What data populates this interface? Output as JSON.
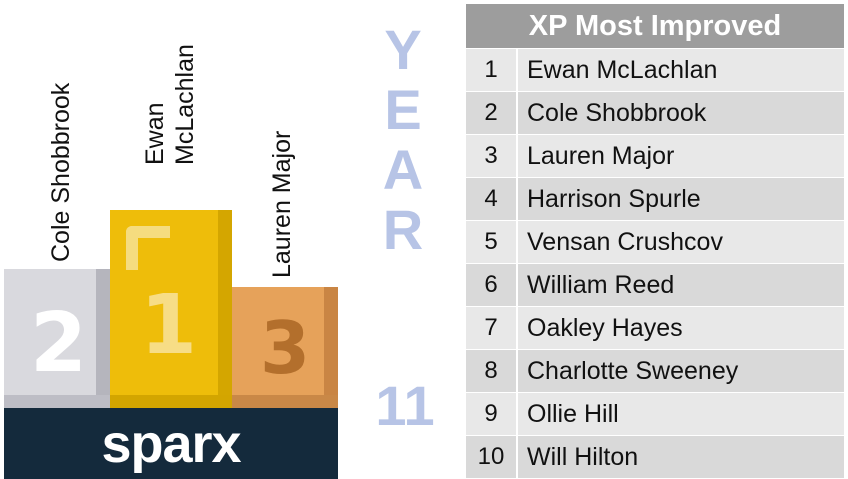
{
  "podium": {
    "first": {
      "name_line1": "Ewan",
      "name_line2": "McLachlan",
      "number": "1"
    },
    "second": {
      "name": "Cole Shobbrook",
      "number": "2"
    },
    "third": {
      "name": "Lauren Major",
      "number": "3"
    },
    "logo": "sparx"
  },
  "year": {
    "letters": [
      "Y",
      "E",
      "A",
      "R"
    ],
    "number": "11",
    "color": "#b7c4e6"
  },
  "leaderboard": {
    "title": "XP Most Improved",
    "rows": [
      {
        "rank": "1",
        "name": "Ewan McLachlan"
      },
      {
        "rank": "2",
        "name": "Cole Shobbrook"
      },
      {
        "rank": "3",
        "name": "Lauren Major"
      },
      {
        "rank": "4",
        "name": "Harrison Spurle"
      },
      {
        "rank": "5",
        "name": "Vensan Crushcov"
      },
      {
        "rank": "6",
        "name": "William Reed"
      },
      {
        "rank": "7",
        "name": "Oakley Hayes"
      },
      {
        "rank": "8",
        "name": "Charlotte Sweeney"
      },
      {
        "rank": "9",
        "name": "Ollie Hill"
      },
      {
        "rank": "10",
        "name": "Will Hilton"
      }
    ]
  },
  "colors": {
    "gold": "#eebd0a",
    "silver": "#d9d9de",
    "bronze": "#e6a25a",
    "base": "#142a3c",
    "header": "#9d9d9d"
  }
}
